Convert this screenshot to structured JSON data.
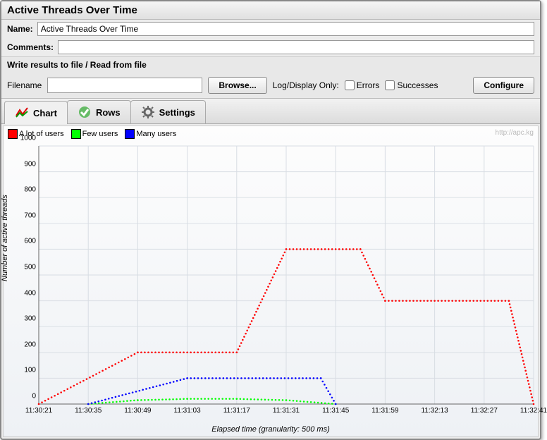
{
  "title": "Active Threads Over Time",
  "name_label": "Name:",
  "name_value": "Active Threads Over Time",
  "comments_label": "Comments:",
  "comments_value": "",
  "file_section": "Write results to file / Read from file",
  "filename_label": "Filename",
  "filename_value": "",
  "browse_label": "Browse...",
  "logdisplay_label": "Log/Display Only:",
  "errors_label": "Errors",
  "successes_label": "Successes",
  "configure_label": "Configure",
  "tabs": {
    "chart": "Chart",
    "rows": "Rows",
    "settings": "Settings"
  },
  "watermark": "http://apc.kg",
  "chart": {
    "y_label": "Number of active threads",
    "x_label": "Elapsed time (granularity: 500 ms)",
    "ylim": [
      0,
      1000
    ],
    "y_ticks": [
      0,
      100,
      200,
      300,
      400,
      500,
      600,
      700,
      800,
      900,
      1000
    ],
    "x_ticks": [
      "11:30:21",
      "11:30:35",
      "11:30:49",
      "11:31:03",
      "11:31:17",
      "11:31:31",
      "11:31:45",
      "11:31:59",
      "11:32:13",
      "11:32:27",
      "11:32:41"
    ],
    "x_range_count": 11,
    "grid_color": "#d8dde3",
    "axis_color": "#666",
    "background_top": "#fdfdfd",
    "background_bottom": "#eef1f5",
    "series": [
      {
        "name": "A lot of users",
        "color": "#ff0000",
        "label": "A lot of users",
        "style": "dotted",
        "data": [
          [
            0,
            0
          ],
          [
            2,
            200
          ],
          [
            4,
            200
          ],
          [
            5,
            600
          ],
          [
            6.5,
            600
          ],
          [
            7,
            400
          ],
          [
            9.5,
            400
          ],
          [
            10,
            0
          ]
        ]
      },
      {
        "name": "Few users",
        "color": "#00ff00",
        "label": "Few users",
        "style": "dotted",
        "data": [
          [
            1,
            0
          ],
          [
            2,
            15
          ],
          [
            3,
            20
          ],
          [
            4,
            20
          ],
          [
            5,
            15
          ],
          [
            6,
            0
          ]
        ]
      },
      {
        "name": "Many users",
        "color": "#0000ff",
        "label": "Many users",
        "style": "dotted",
        "data": [
          [
            1,
            0
          ],
          [
            3,
            100
          ],
          [
            5.7,
            100
          ],
          [
            6,
            0
          ]
        ]
      }
    ],
    "line_width": 2,
    "dot_radius": 1.3
  }
}
